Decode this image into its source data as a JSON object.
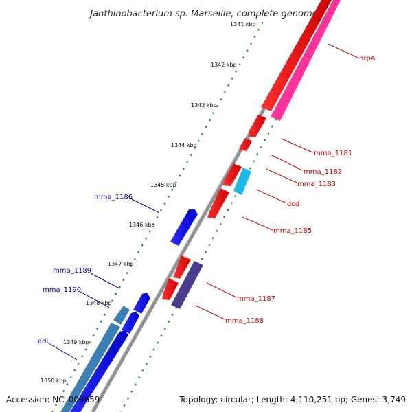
{
  "title": "Janthinobacterium sp. Marseille, complete genome",
  "footer": {
    "accession": "Accession: NC_009659",
    "summary": "Topology: circular; Length: 4,110,251 bp; Genes: 3,749"
  },
  "colors": {
    "backbone": "#909090",
    "tick_dots": "#1a8a1a",
    "red_label": "#cc0000",
    "blue_label": "#0000aa",
    "forward_gene": "#ee0000",
    "reverse_gene": "#0000ee",
    "pink_gene": "#ff3399",
    "cyan_gene": "#19b8e6",
    "steel_gene": "#3a7fb5",
    "purple_gene": "#4a3d8f"
  },
  "scale_labels": [
    "1341 kbp",
    "1342 kbp",
    "1343 kbp",
    "1344 kbp",
    "1345 kbp",
    "1346 kbp",
    "1347 kbp",
    "1348 kbp",
    "1349 kbp",
    "1350 kbp"
  ],
  "gene_labels_right": [
    "hrpA",
    "mma_1181",
    "mma_1182",
    "mma_1183",
    "dcd",
    "mma_1185",
    "mma_1187",
    "mma_1188"
  ],
  "gene_labels_left": [
    "mma_1186",
    "mma_1189",
    "mma_1190",
    "adi"
  ]
}
